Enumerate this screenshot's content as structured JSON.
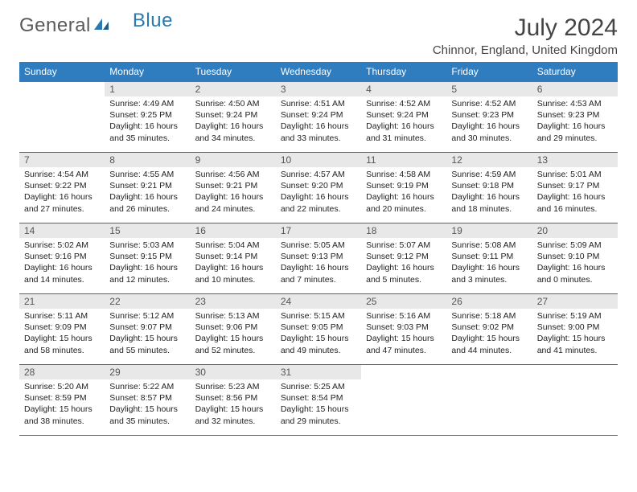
{
  "logo": {
    "part1": "General",
    "part2": "Blue"
  },
  "title": "July 2024",
  "location": "Chinnor, England, United Kingdom",
  "colors": {
    "header_bg": "#2f7cbf",
    "header_text": "#ffffff",
    "daynum_bg": "#e8e8e8",
    "rule": "#2f6ea5",
    "logo_gray": "#5a5a5a",
    "logo_blue": "#2a7ab0"
  },
  "daynames": [
    "Sunday",
    "Monday",
    "Tuesday",
    "Wednesday",
    "Thursday",
    "Friday",
    "Saturday"
  ],
  "weeks": [
    [
      {
        "n": "",
        "lines": [
          "",
          "",
          "",
          ""
        ]
      },
      {
        "n": "1",
        "lines": [
          "Sunrise: 4:49 AM",
          "Sunset: 9:25 PM",
          "Daylight: 16 hours",
          "and 35 minutes."
        ]
      },
      {
        "n": "2",
        "lines": [
          "Sunrise: 4:50 AM",
          "Sunset: 9:24 PM",
          "Daylight: 16 hours",
          "and 34 minutes."
        ]
      },
      {
        "n": "3",
        "lines": [
          "Sunrise: 4:51 AM",
          "Sunset: 9:24 PM",
          "Daylight: 16 hours",
          "and 33 minutes."
        ]
      },
      {
        "n": "4",
        "lines": [
          "Sunrise: 4:52 AM",
          "Sunset: 9:24 PM",
          "Daylight: 16 hours",
          "and 31 minutes."
        ]
      },
      {
        "n": "5",
        "lines": [
          "Sunrise: 4:52 AM",
          "Sunset: 9:23 PM",
          "Daylight: 16 hours",
          "and 30 minutes."
        ]
      },
      {
        "n": "6",
        "lines": [
          "Sunrise: 4:53 AM",
          "Sunset: 9:23 PM",
          "Daylight: 16 hours",
          "and 29 minutes."
        ]
      }
    ],
    [
      {
        "n": "7",
        "lines": [
          "Sunrise: 4:54 AM",
          "Sunset: 9:22 PM",
          "Daylight: 16 hours",
          "and 27 minutes."
        ]
      },
      {
        "n": "8",
        "lines": [
          "Sunrise: 4:55 AM",
          "Sunset: 9:21 PM",
          "Daylight: 16 hours",
          "and 26 minutes."
        ]
      },
      {
        "n": "9",
        "lines": [
          "Sunrise: 4:56 AM",
          "Sunset: 9:21 PM",
          "Daylight: 16 hours",
          "and 24 minutes."
        ]
      },
      {
        "n": "10",
        "lines": [
          "Sunrise: 4:57 AM",
          "Sunset: 9:20 PM",
          "Daylight: 16 hours",
          "and 22 minutes."
        ]
      },
      {
        "n": "11",
        "lines": [
          "Sunrise: 4:58 AM",
          "Sunset: 9:19 PM",
          "Daylight: 16 hours",
          "and 20 minutes."
        ]
      },
      {
        "n": "12",
        "lines": [
          "Sunrise: 4:59 AM",
          "Sunset: 9:18 PM",
          "Daylight: 16 hours",
          "and 18 minutes."
        ]
      },
      {
        "n": "13",
        "lines": [
          "Sunrise: 5:01 AM",
          "Sunset: 9:17 PM",
          "Daylight: 16 hours",
          "and 16 minutes."
        ]
      }
    ],
    [
      {
        "n": "14",
        "lines": [
          "Sunrise: 5:02 AM",
          "Sunset: 9:16 PM",
          "Daylight: 16 hours",
          "and 14 minutes."
        ]
      },
      {
        "n": "15",
        "lines": [
          "Sunrise: 5:03 AM",
          "Sunset: 9:15 PM",
          "Daylight: 16 hours",
          "and 12 minutes."
        ]
      },
      {
        "n": "16",
        "lines": [
          "Sunrise: 5:04 AM",
          "Sunset: 9:14 PM",
          "Daylight: 16 hours",
          "and 10 minutes."
        ]
      },
      {
        "n": "17",
        "lines": [
          "Sunrise: 5:05 AM",
          "Sunset: 9:13 PM",
          "Daylight: 16 hours",
          "and 7 minutes."
        ]
      },
      {
        "n": "18",
        "lines": [
          "Sunrise: 5:07 AM",
          "Sunset: 9:12 PM",
          "Daylight: 16 hours",
          "and 5 minutes."
        ]
      },
      {
        "n": "19",
        "lines": [
          "Sunrise: 5:08 AM",
          "Sunset: 9:11 PM",
          "Daylight: 16 hours",
          "and 3 minutes."
        ]
      },
      {
        "n": "20",
        "lines": [
          "Sunrise: 5:09 AM",
          "Sunset: 9:10 PM",
          "Daylight: 16 hours",
          "and 0 minutes."
        ]
      }
    ],
    [
      {
        "n": "21",
        "lines": [
          "Sunrise: 5:11 AM",
          "Sunset: 9:09 PM",
          "Daylight: 15 hours",
          "and 58 minutes."
        ]
      },
      {
        "n": "22",
        "lines": [
          "Sunrise: 5:12 AM",
          "Sunset: 9:07 PM",
          "Daylight: 15 hours",
          "and 55 minutes."
        ]
      },
      {
        "n": "23",
        "lines": [
          "Sunrise: 5:13 AM",
          "Sunset: 9:06 PM",
          "Daylight: 15 hours",
          "and 52 minutes."
        ]
      },
      {
        "n": "24",
        "lines": [
          "Sunrise: 5:15 AM",
          "Sunset: 9:05 PM",
          "Daylight: 15 hours",
          "and 49 minutes."
        ]
      },
      {
        "n": "25",
        "lines": [
          "Sunrise: 5:16 AM",
          "Sunset: 9:03 PM",
          "Daylight: 15 hours",
          "and 47 minutes."
        ]
      },
      {
        "n": "26",
        "lines": [
          "Sunrise: 5:18 AM",
          "Sunset: 9:02 PM",
          "Daylight: 15 hours",
          "and 44 minutes."
        ]
      },
      {
        "n": "27",
        "lines": [
          "Sunrise: 5:19 AM",
          "Sunset: 9:00 PM",
          "Daylight: 15 hours",
          "and 41 minutes."
        ]
      }
    ],
    [
      {
        "n": "28",
        "lines": [
          "Sunrise: 5:20 AM",
          "Sunset: 8:59 PM",
          "Daylight: 15 hours",
          "and 38 minutes."
        ]
      },
      {
        "n": "29",
        "lines": [
          "Sunrise: 5:22 AM",
          "Sunset: 8:57 PM",
          "Daylight: 15 hours",
          "and 35 minutes."
        ]
      },
      {
        "n": "30",
        "lines": [
          "Sunrise: 5:23 AM",
          "Sunset: 8:56 PM",
          "Daylight: 15 hours",
          "and 32 minutes."
        ]
      },
      {
        "n": "31",
        "lines": [
          "Sunrise: 5:25 AM",
          "Sunset: 8:54 PM",
          "Daylight: 15 hours",
          "and 29 minutes."
        ]
      },
      {
        "n": "",
        "lines": [
          "",
          "",
          "",
          ""
        ]
      },
      {
        "n": "",
        "lines": [
          "",
          "",
          "",
          ""
        ]
      },
      {
        "n": "",
        "lines": [
          "",
          "",
          "",
          ""
        ]
      }
    ]
  ]
}
